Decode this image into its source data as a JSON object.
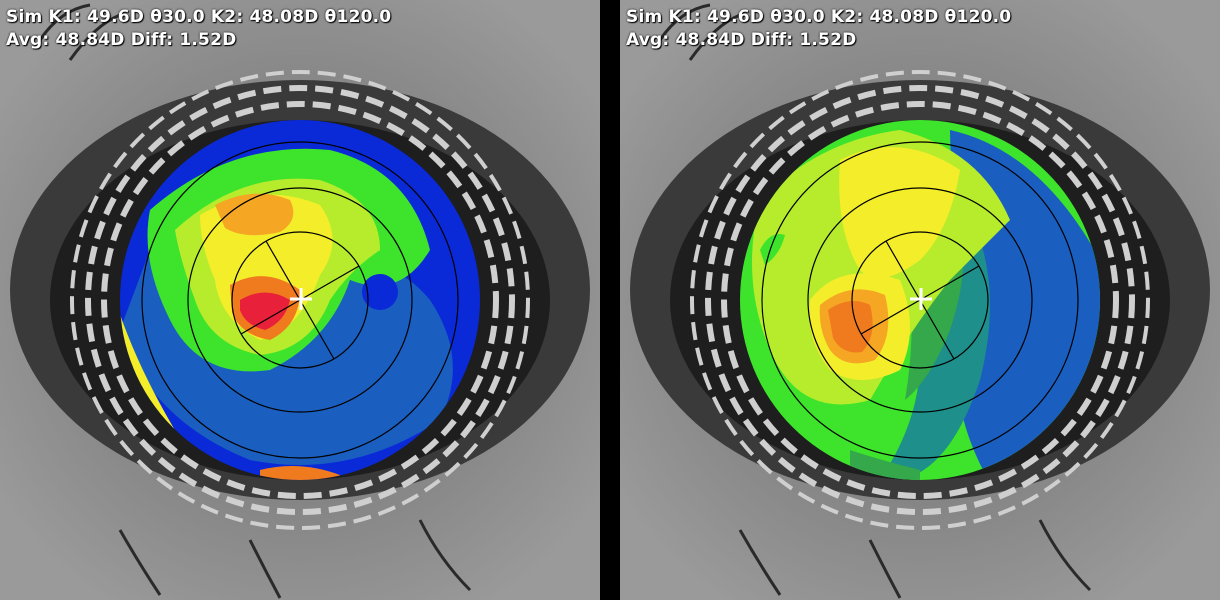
{
  "panels": [
    {
      "id": "left",
      "readout": {
        "line1": "Sim K1: 49.6D θ30.0 K2: 48.08D θ120.0",
        "line2": "Avg: 48.84D Diff: 1.52D"
      }
    },
    {
      "id": "right",
      "readout": {
        "line1": "Sim K1: 49.6D θ30.0 K2: 48.08D θ120.0",
        "line2": "Avg: 48.84D Diff: 1.52D"
      }
    }
  ],
  "colors": {
    "red": "#e8203a",
    "orange": "#f07b1e",
    "light_orange": "#f5a623",
    "yellow": "#f4ee2a",
    "light_green": "#b7ec2d",
    "green": "#3de42b",
    "dark_green": "#34a84a",
    "teal": "#1e8f8a",
    "blue": "#1a5fc0",
    "deep_blue": "#0a2ad8",
    "ring_line": "#000000",
    "crosshair": "#ffffff",
    "background_gray": "#7a7a7a"
  },
  "overlay": {
    "rings": 4,
    "axis_angles_deg": [
      30.0,
      120.0
    ]
  }
}
